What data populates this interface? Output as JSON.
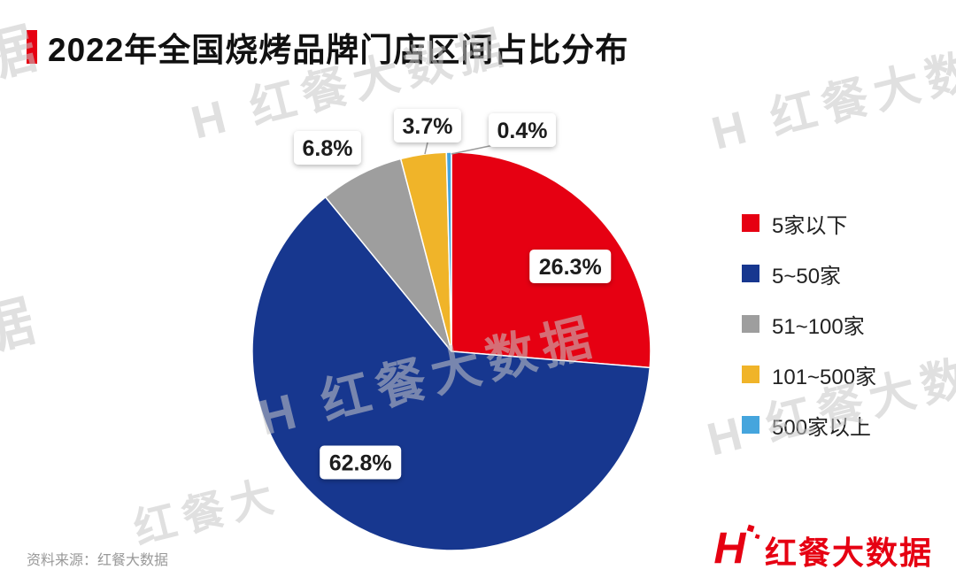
{
  "title": {
    "text": "2022年全国烧烤品牌门店区间占比分布",
    "accent_color": "#e60012"
  },
  "chart_data": {
    "type": "pie",
    "title": "2022年全国烧烤品牌门店区间占比分布",
    "categories": [
      "5家以下",
      "5~50家",
      "51~100家",
      "101~500家",
      "500家以上"
    ],
    "values": [
      26.3,
      62.8,
      6.8,
      3.7,
      0.4
    ],
    "unit": "%",
    "slice_labels": [
      "26.3%",
      "62.8%",
      "6.8%",
      "3.7%",
      "0.4%"
    ],
    "colors": [
      "#e60012",
      "#17378f",
      "#9e9e9e",
      "#f0b429",
      "#45a5dd"
    ],
    "start_angle_deg": 0,
    "direction": "clockwise",
    "legend_position": "right",
    "grid": false
  },
  "legend": {
    "items": [
      {
        "label": "5家以下",
        "color": "#e60012"
      },
      {
        "label": "5~50家",
        "color": "#17378f"
      },
      {
        "label": "51~100家",
        "color": "#9e9e9e"
      },
      {
        "label": "101~500家",
        "color": "#f0b429"
      },
      {
        "label": "500家以上",
        "color": "#45a5dd"
      }
    ]
  },
  "footer": {
    "source_text": "资料来源：红餐大数据"
  },
  "logo": {
    "text": "红餐大数据",
    "mark": "H",
    "color": "#e60012"
  },
  "watermark": {
    "text": "红餐大数据",
    "mark": "H"
  }
}
